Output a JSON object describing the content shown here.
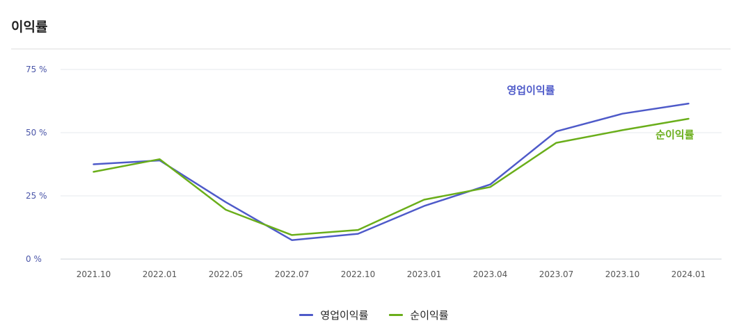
{
  "page": {
    "title": "이익률"
  },
  "chart_data": {
    "type": "line",
    "title": "이익률",
    "categories": [
      "2021.10",
      "2022.01",
      "2022.05",
      "2022.07",
      "2022.10",
      "2023.01",
      "2023.04",
      "2023.07",
      "2023.10",
      "2024.01"
    ],
    "series": [
      {
        "name": "영업이익률",
        "color": "#4e5ac9",
        "values": [
          37.5,
          39,
          22.5,
          7.5,
          10,
          21,
          29.5,
          50.5,
          57.5,
          61.5
        ]
      },
      {
        "name": "순이익률",
        "color": "#6aae1a",
        "values": [
          34.5,
          39.5,
          19.5,
          9.5,
          11.5,
          23.5,
          28.5,
          46,
          51,
          55.5
        ]
      }
    ],
    "y_ticks": [
      {
        "value": 0,
        "label": "0 %"
      },
      {
        "value": 25,
        "label": "25 %"
      },
      {
        "value": 50,
        "label": "50 %"
      },
      {
        "value": 75,
        "label": "75 %"
      }
    ],
    "ylim": [
      0,
      75
    ],
    "grid": true,
    "legend": "bottom-center",
    "end_labels": true
  }
}
